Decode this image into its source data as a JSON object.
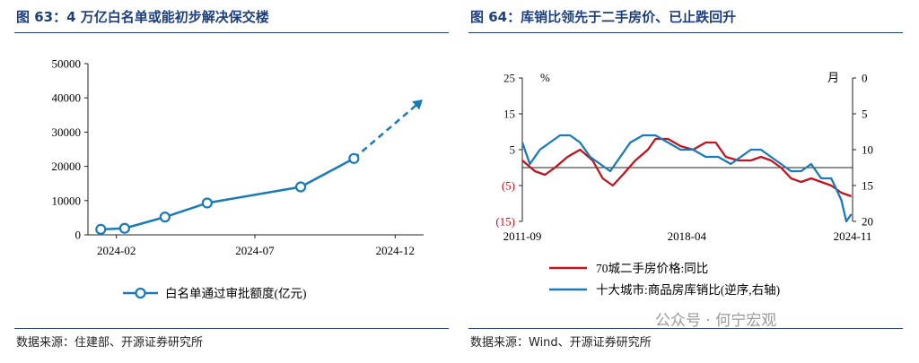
{
  "panel_left": {
    "title": "图 63：4 万亿白名单或能初步解决保交楼",
    "source": "数据来源：住建部、开源证券研究所"
  },
  "panel_right": {
    "title": "图 64：库销比领先于二手房价、已止跌回升",
    "source": "数据来源：Wind、开源证券研究所"
  },
  "watermark": "公众号 · 何宁宏观",
  "chart_data": [
    {
      "type": "line",
      "x_ticks": [
        "2024-02",
        "2024-07",
        "2024-12"
      ],
      "y_ticks": [
        "0",
        "10000",
        "20000",
        "30000",
        "40000",
        "50000"
      ],
      "ylim": [
        0,
        50000
      ],
      "legend_position": "bottom",
      "series": [
        {
          "name": "白名单通过审批额度(亿元)",
          "color": "#1a7ab8",
          "x": [
            "2024-01-15",
            "2024-02-10",
            "2024-03-25",
            "2024-05-10",
            "2024-08-20",
            "2024-10-17"
          ],
          "values": [
            1600,
            1900,
            5200,
            9300,
            14000,
            22300
          ]
        },
        {
          "name": "",
          "color": "#1a7ab8",
          "style": "dashed",
          "x": [
            "2024-10-17",
            "2024-12-31"
          ],
          "values": [
            22300,
            39500
          ]
        }
      ]
    },
    {
      "type": "line",
      "x_ticks": [
        "2011-09",
        "2018-04",
        "2024-11"
      ],
      "y_left_ticks": [
        "25",
        "15",
        "5",
        "(5)",
        "(15)"
      ],
      "y_left_unit": "%",
      "y_left_lim": [
        -15,
        25
      ],
      "y_right_ticks": [
        "0",
        "5",
        "10",
        "15",
        "20"
      ],
      "y_right_unit": "月",
      "y_right_lim": [
        0,
        20
      ],
      "y_right_inverted": true,
      "legend_position": "bottom",
      "series": [
        {
          "name": "70城二手房价格:同比",
          "color": "#c0141e",
          "axis": "left",
          "x": [
            2011.7,
            2012.2,
            2012.6,
            2013.0,
            2013.5,
            2014.0,
            2014.5,
            2014.9,
            2015.3,
            2015.7,
            2016.2,
            2016.7,
            2017.0,
            2017.5,
            2018.0,
            2018.5,
            2019.0,
            2019.4,
            2019.8,
            2020.3,
            2020.8,
            2021.2,
            2021.6,
            2022.0,
            2022.4,
            2022.8,
            2023.2,
            2023.6,
            2024.0,
            2024.4,
            2024.8
          ],
          "values": [
            2,
            -1,
            -2,
            0,
            3,
            5,
            2,
            -3,
            -5,
            -2,
            2,
            5,
            8,
            8,
            6,
            5,
            7,
            7,
            3,
            2,
            2,
            3,
            2,
            0,
            -3,
            -4,
            -3,
            -4,
            -5,
            -7,
            -8
          ]
        },
        {
          "name": "十大城市:商品房库销比(逆序,右轴)",
          "color": "#1a7ab8",
          "axis": "right",
          "x": [
            2011.7,
            2012.0,
            2012.4,
            2012.8,
            2013.2,
            2013.6,
            2014.0,
            2014.4,
            2014.8,
            2015.2,
            2015.6,
            2016.0,
            2016.5,
            2017.0,
            2017.5,
            2018.0,
            2018.5,
            2019.0,
            2019.5,
            2020.0,
            2020.4,
            2020.8,
            2021.2,
            2021.6,
            2022.0,
            2022.4,
            2022.8,
            2023.2,
            2023.6,
            2024.0,
            2024.4,
            2024.6,
            2024.8
          ],
          "values": [
            9,
            12,
            10,
            9,
            8,
            8,
            9,
            11,
            12,
            13,
            11,
            9,
            8,
            8,
            9,
            10,
            10,
            11,
            11,
            12,
            11,
            10,
            10,
            11,
            12,
            13,
            13,
            12,
            14,
            14,
            17,
            20,
            19
          ]
        }
      ]
    }
  ]
}
